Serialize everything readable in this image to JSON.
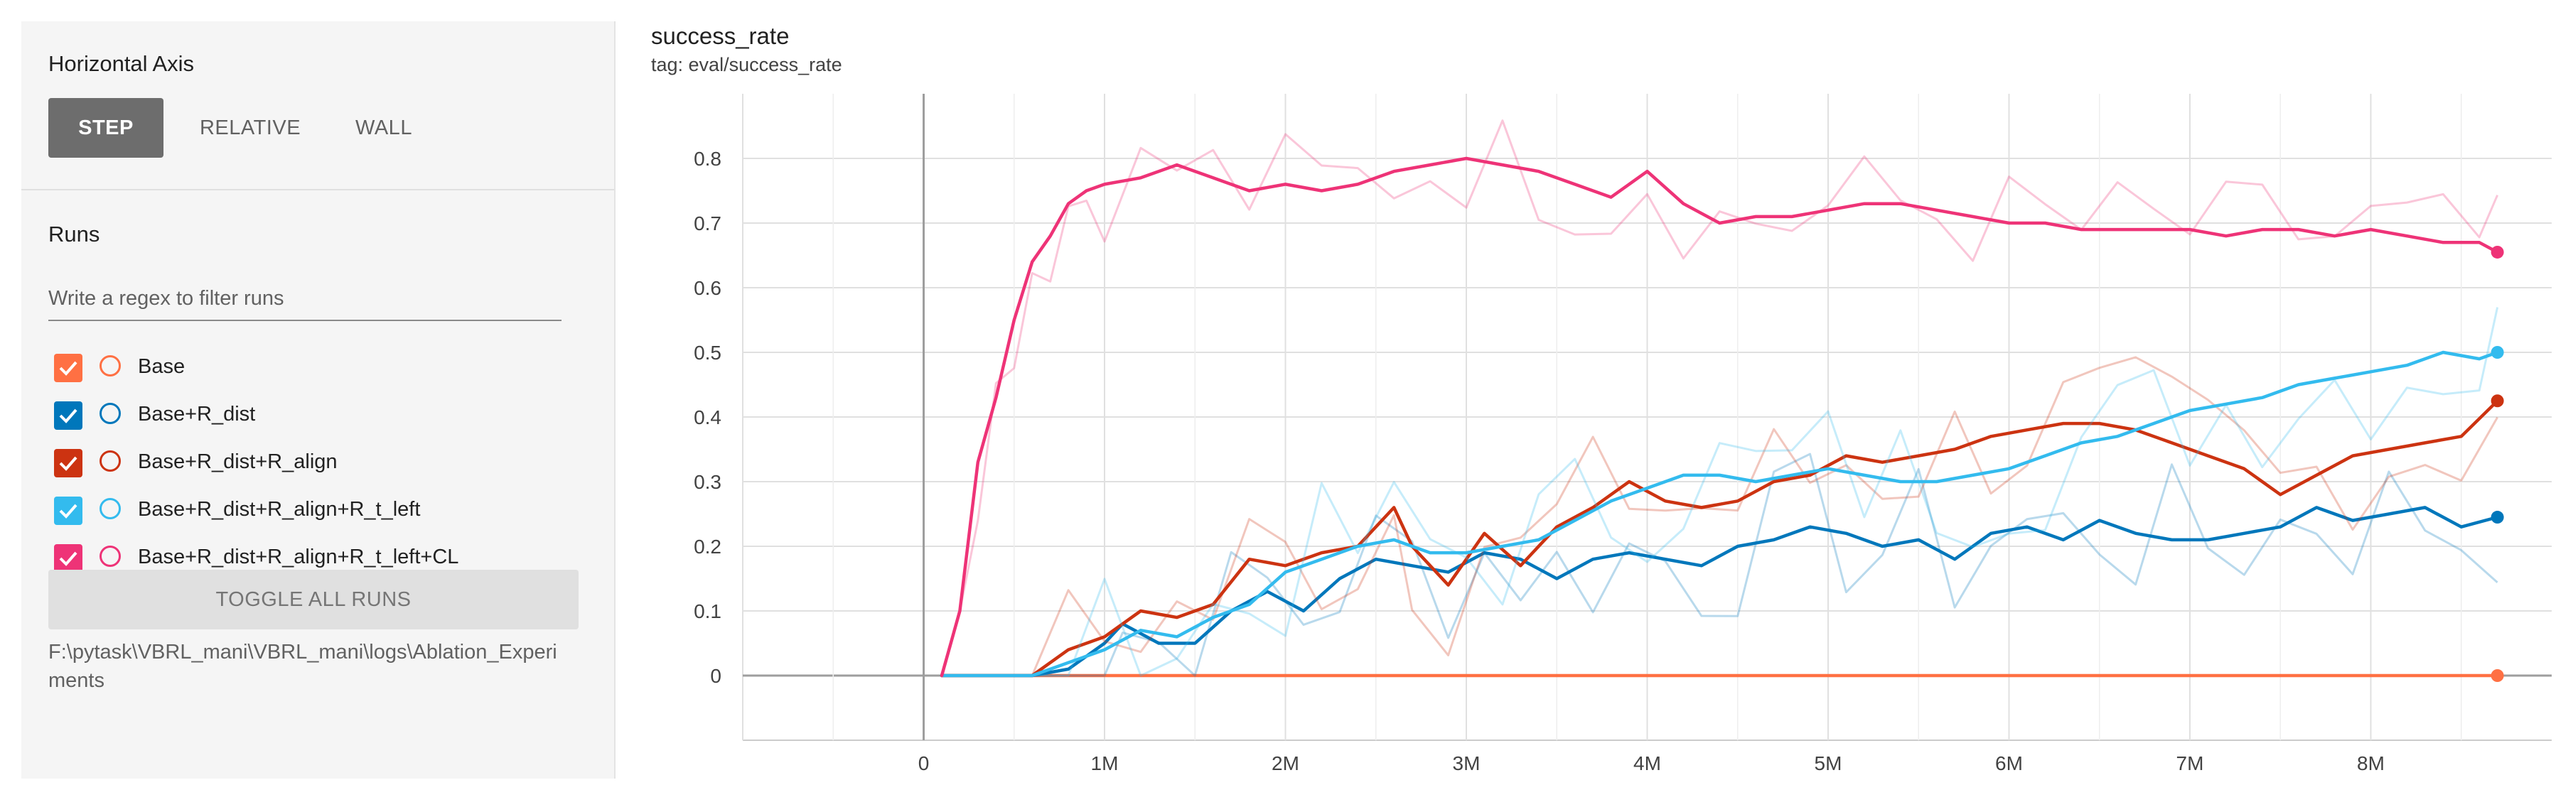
{
  "sidebar": {
    "horizontal_axis_title": "Horizontal Axis",
    "axis_buttons": {
      "step": "STEP",
      "relative": "RELATIVE",
      "wall": "WALL"
    },
    "runs_title": "Runs",
    "filter_placeholder": "Write a regex to filter runs",
    "runs": [
      {
        "label": "Base",
        "color": "#ff7043"
      },
      {
        "label": "Base+R_dist",
        "color": "#0077bb"
      },
      {
        "label": "Base+R_dist+R_align",
        "color": "#cc3311"
      },
      {
        "label": "Base+R_dist+R_align+R_t_left",
        "color": "#33bbee"
      },
      {
        "label": "Base+R_dist+R_align+R_t_left+CL",
        "color": "#ee3377"
      }
    ],
    "toggle_all": "TOGGLE ALL RUNS",
    "log_path": "F:\\pytask\\VBRL_mani\\VBRL_mani\\logs\\Ablation_Experiments"
  },
  "chart": {
    "title": "success_rate",
    "tag": "tag: eval/success_rate"
  },
  "chart_data": {
    "type": "line",
    "title": "success_rate",
    "subtitle": "tag: eval/success_rate",
    "xlim": [
      -1000000,
      9000000
    ],
    "ylim": [
      -0.1,
      0.9
    ],
    "x_ticks": [
      0,
      1000000,
      2000000,
      3000000,
      4000000,
      5000000,
      6000000,
      7000000,
      8000000
    ],
    "x_tick_labels": [
      "0",
      "1M",
      "2M",
      "3M",
      "4M",
      "5M",
      "6M",
      "7M",
      "8M"
    ],
    "y_ticks": [
      0,
      0.1,
      0.2,
      0.3,
      0.4,
      0.5,
      0.6,
      0.7,
      0.8
    ],
    "y_tick_labels": [
      "0",
      "0.1",
      "0.2",
      "0.3",
      "0.4",
      "0.5",
      "0.6",
      "0.7",
      "0.8"
    ],
    "grid": true,
    "series": [
      {
        "name": "Base",
        "color": "#ff7043",
        "points": [
          [
            100000,
            0
          ],
          [
            1000000,
            0
          ],
          [
            2000000,
            0
          ],
          [
            3000000,
            0
          ],
          [
            4000000,
            0
          ],
          [
            5000000,
            0
          ],
          [
            6000000,
            0
          ],
          [
            7000000,
            0
          ],
          [
            8000000,
            0
          ],
          [
            8700000,
            0
          ]
        ]
      },
      {
        "name": "Base+R_dist",
        "color": "#0077bb",
        "points": [
          [
            100000,
            0
          ],
          [
            600000,
            0
          ],
          [
            800000,
            0.01
          ],
          [
            1000000,
            0.05
          ],
          [
            1100000,
            0.08
          ],
          [
            1300000,
            0.05
          ],
          [
            1500000,
            0.05
          ],
          [
            1700000,
            0.1
          ],
          [
            1900000,
            0.13
          ],
          [
            2100000,
            0.1
          ],
          [
            2300000,
            0.15
          ],
          [
            2500000,
            0.18
          ],
          [
            2700000,
            0.17
          ],
          [
            2900000,
            0.16
          ],
          [
            3100000,
            0.19
          ],
          [
            3300000,
            0.18
          ],
          [
            3500000,
            0.15
          ],
          [
            3700000,
            0.18
          ],
          [
            3900000,
            0.19
          ],
          [
            4100000,
            0.18
          ],
          [
            4300000,
            0.17
          ],
          [
            4500000,
            0.2
          ],
          [
            4700000,
            0.21
          ],
          [
            4900000,
            0.23
          ],
          [
            5100000,
            0.22
          ],
          [
            5300000,
            0.2
          ],
          [
            5500000,
            0.21
          ],
          [
            5700000,
            0.18
          ],
          [
            5900000,
            0.22
          ],
          [
            6100000,
            0.23
          ],
          [
            6300000,
            0.21
          ],
          [
            6500000,
            0.24
          ],
          [
            6700000,
            0.22
          ],
          [
            6900000,
            0.21
          ],
          [
            7100000,
            0.21
          ],
          [
            7300000,
            0.22
          ],
          [
            7500000,
            0.23
          ],
          [
            7700000,
            0.26
          ],
          [
            7900000,
            0.24
          ],
          [
            8100000,
            0.25
          ],
          [
            8300000,
            0.26
          ],
          [
            8500000,
            0.23
          ],
          [
            8700000,
            0.245
          ]
        ]
      },
      {
        "name": "Base+R_dist+R_align",
        "color": "#cc3311",
        "points": [
          [
            100000,
            0
          ],
          [
            600000,
            0
          ],
          [
            800000,
            0.04
          ],
          [
            1000000,
            0.06
          ],
          [
            1200000,
            0.1
          ],
          [
            1400000,
            0.09
          ],
          [
            1600000,
            0.11
          ],
          [
            1800000,
            0.18
          ],
          [
            2000000,
            0.17
          ],
          [
            2200000,
            0.19
          ],
          [
            2400000,
            0.2
          ],
          [
            2600000,
            0.26
          ],
          [
            2700000,
            0.2
          ],
          [
            2900000,
            0.14
          ],
          [
            3100000,
            0.22
          ],
          [
            3300000,
            0.17
          ],
          [
            3500000,
            0.23
          ],
          [
            3700000,
            0.26
          ],
          [
            3900000,
            0.3
          ],
          [
            4100000,
            0.27
          ],
          [
            4300000,
            0.26
          ],
          [
            4500000,
            0.27
          ],
          [
            4700000,
            0.3
          ],
          [
            4900000,
            0.31
          ],
          [
            5100000,
            0.34
          ],
          [
            5300000,
            0.33
          ],
          [
            5500000,
            0.34
          ],
          [
            5700000,
            0.35
          ],
          [
            5900000,
            0.37
          ],
          [
            6100000,
            0.38
          ],
          [
            6300000,
            0.39
          ],
          [
            6500000,
            0.39
          ],
          [
            6700000,
            0.38
          ],
          [
            6900000,
            0.36
          ],
          [
            7100000,
            0.34
          ],
          [
            7300000,
            0.32
          ],
          [
            7500000,
            0.28
          ],
          [
            7700000,
            0.31
          ],
          [
            7900000,
            0.34
          ],
          [
            8100000,
            0.35
          ],
          [
            8300000,
            0.36
          ],
          [
            8500000,
            0.37
          ],
          [
            8700000,
            0.425
          ]
        ]
      },
      {
        "name": "Base+R_dist+R_align+R_t_left",
        "color": "#33bbee",
        "points": [
          [
            100000,
            0
          ],
          [
            600000,
            0
          ],
          [
            800000,
            0.02
          ],
          [
            1000000,
            0.04
          ],
          [
            1200000,
            0.07
          ],
          [
            1400000,
            0.06
          ],
          [
            1600000,
            0.09
          ],
          [
            1800000,
            0.11
          ],
          [
            2000000,
            0.16
          ],
          [
            2200000,
            0.18
          ],
          [
            2400000,
            0.2
          ],
          [
            2600000,
            0.21
          ],
          [
            2800000,
            0.19
          ],
          [
            3000000,
            0.19
          ],
          [
            3200000,
            0.2
          ],
          [
            3400000,
            0.21
          ],
          [
            3600000,
            0.24
          ],
          [
            3800000,
            0.27
          ],
          [
            4000000,
            0.29
          ],
          [
            4200000,
            0.31
          ],
          [
            4400000,
            0.31
          ],
          [
            4600000,
            0.3
          ],
          [
            4800000,
            0.31
          ],
          [
            5000000,
            0.32
          ],
          [
            5200000,
            0.31
          ],
          [
            5400000,
            0.3
          ],
          [
            5600000,
            0.3
          ],
          [
            5800000,
            0.31
          ],
          [
            6000000,
            0.32
          ],
          [
            6200000,
            0.34
          ],
          [
            6400000,
            0.36
          ],
          [
            6600000,
            0.37
          ],
          [
            6800000,
            0.39
          ],
          [
            7000000,
            0.41
          ],
          [
            7200000,
            0.42
          ],
          [
            7400000,
            0.43
          ],
          [
            7600000,
            0.45
          ],
          [
            7800000,
            0.46
          ],
          [
            8000000,
            0.47
          ],
          [
            8200000,
            0.48
          ],
          [
            8400000,
            0.5
          ],
          [
            8600000,
            0.49
          ],
          [
            8700000,
            0.5
          ]
        ]
      },
      {
        "name": "Base+R_dist+R_align+R_t_left+CL",
        "color": "#ee3377",
        "points": [
          [
            100000,
            0
          ],
          [
            200000,
            0.1
          ],
          [
            300000,
            0.33
          ],
          [
            400000,
            0.43
          ],
          [
            500000,
            0.55
          ],
          [
            600000,
            0.64
          ],
          [
            700000,
            0.68
          ],
          [
            800000,
            0.73
          ],
          [
            900000,
            0.75
          ],
          [
            1000000,
            0.76
          ],
          [
            1200000,
            0.77
          ],
          [
            1400000,
            0.79
          ],
          [
            1600000,
            0.77
          ],
          [
            1800000,
            0.75
          ],
          [
            2000000,
            0.76
          ],
          [
            2200000,
            0.75
          ],
          [
            2400000,
            0.76
          ],
          [
            2600000,
            0.78
          ],
          [
            2800000,
            0.79
          ],
          [
            3000000,
            0.8
          ],
          [
            3200000,
            0.79
          ],
          [
            3400000,
            0.78
          ],
          [
            3600000,
            0.76
          ],
          [
            3800000,
            0.74
          ],
          [
            4000000,
            0.78
          ],
          [
            4200000,
            0.73
          ],
          [
            4400000,
            0.7
          ],
          [
            4600000,
            0.71
          ],
          [
            4800000,
            0.71
          ],
          [
            5000000,
            0.72
          ],
          [
            5200000,
            0.73
          ],
          [
            5400000,
            0.73
          ],
          [
            5600000,
            0.72
          ],
          [
            5800000,
            0.71
          ],
          [
            6000000,
            0.7
          ],
          [
            6200000,
            0.7
          ],
          [
            6400000,
            0.69
          ],
          [
            6600000,
            0.69
          ],
          [
            6800000,
            0.69
          ],
          [
            7000000,
            0.69
          ],
          [
            7200000,
            0.68
          ],
          [
            7400000,
            0.69
          ],
          [
            7600000,
            0.69
          ],
          [
            7800000,
            0.68
          ],
          [
            8000000,
            0.69
          ],
          [
            8200000,
            0.68
          ],
          [
            8400000,
            0.67
          ],
          [
            8600000,
            0.67
          ],
          [
            8700000,
            0.655
          ]
        ]
      }
    ]
  }
}
